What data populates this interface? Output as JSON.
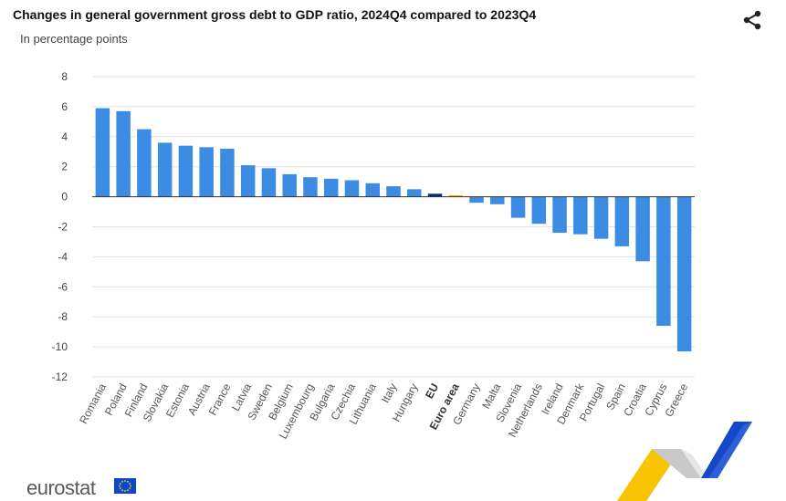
{
  "header": {
    "title": "Changes in general government gross debt to GDP ratio, 2024Q4 compared to 2023Q4",
    "subtitle": "In percentage points"
  },
  "share_icon": "share-icon",
  "logo": {
    "text": "eurostat"
  },
  "colors": {
    "bar": "#3c8ce4",
    "eu": "#0e2f6e",
    "euro_area": "#f4b400",
    "grid": "#e2e2e2"
  },
  "chart_data": {
    "type": "bar",
    "title": "Changes in general government gross debt to GDP ratio, 2024Q4 compared to 2023Q4",
    "ylabel": "In percentage points",
    "ylim": [
      -12,
      8
    ],
    "yticks": [
      8,
      6,
      4,
      2,
      0,
      -2,
      -4,
      -6,
      -8,
      -10,
      -12
    ],
    "grid": true,
    "categories": [
      "Romania",
      "Poland",
      "Finland",
      "Slovakia",
      "Estonia",
      "Austria",
      "France",
      "Latvia",
      "Sweden",
      "Belgium",
      "Luxembourg",
      "Bulgaria",
      "Czechia",
      "Lithuania",
      "Italy",
      "Hungary",
      "EU",
      "Euro area",
      "Germany",
      "Malta",
      "Slovenia",
      "Netherlands",
      "Ireland",
      "Denmark",
      "Portugal",
      "Spain",
      "Croatia",
      "Cyprus",
      "Greece"
    ],
    "values": [
      5.9,
      5.7,
      4.5,
      3.6,
      3.4,
      3.3,
      3.2,
      2.1,
      1.9,
      1.5,
      1.3,
      1.2,
      1.1,
      0.9,
      0.7,
      0.5,
      0.2,
      0.1,
      -0.4,
      -0.5,
      -1.4,
      -1.8,
      -2.4,
      -2.5,
      -2.8,
      -3.3,
      -4.3,
      -8.6,
      -10.3
    ],
    "highlight": [
      "EU",
      "Euro area"
    ]
  }
}
